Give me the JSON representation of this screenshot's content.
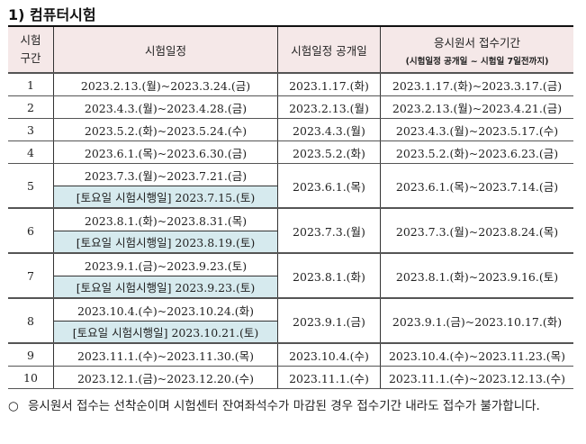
{
  "title": "1) 컴퓨터시험",
  "headers": {
    "period": "시험\n구간",
    "schedule": "시험일정",
    "announce": "시험일정 공개일",
    "apply": "응시원서 접수기간",
    "apply_sub": "(시험일정 공개일 ~ 시험일 7일전까지)"
  },
  "rows": [
    {
      "no": "1",
      "schedule": "2023.2.13.(월)~2023.3.24.(금)",
      "announce": "2023.1.17.(화)",
      "apply": "2023.1.17.(화)~2023.3.17.(금)"
    },
    {
      "no": "2",
      "schedule": "2023.4.3.(월)~2023.4.28.(금)",
      "announce": "2023.2.13.(월)",
      "apply": "2023.2.13.(월)~2023.4.21.(금)"
    },
    {
      "no": "3",
      "schedule": "2023.5.2.(화)~2023.5.24.(수)",
      "announce": "2023.4.3.(월)",
      "apply": "2023.4.3.(월)~2023.5.17.(수)"
    },
    {
      "no": "4",
      "schedule": "2023.6.1.(목)~2023.6.30.(금)",
      "announce": "2023.5.2.(화)",
      "apply": "2023.5.2.(화)~2023.6.23.(금)"
    },
    {
      "no": "5",
      "schedule": "2023.7.3.(월)~2023.7.21.(금)",
      "saturday": "[토요일 시험시행일] 2023.7.15.(토)",
      "announce": "2023.6.1.(목)",
      "apply": "2023.6.1.(목)~2023.7.14.(금)"
    },
    {
      "no": "6",
      "schedule": "2023.8.1.(화)~2023.8.31.(목)",
      "saturday": "[토요일 시험시행일] 2023.8.19.(토)",
      "announce": "2023.7.3.(월)",
      "apply": "2023.7.3.(월)~2023.8.24.(목)"
    },
    {
      "no": "7",
      "schedule": "2023.9.1.(금)~2023.9.23.(토)",
      "saturday": "[토요일 시험시행일] 2023.9.23.(토)",
      "announce": "2023.8.1.(화)",
      "apply": "2023.8.1.(화)~2023.9.16.(토)"
    },
    {
      "no": "8",
      "schedule": "2023.10.4.(수)~2023.10.24.(화)",
      "saturday": "[토요일 시험시행일] 2023.10.21.(토)",
      "announce": "2023.9.1.(금)",
      "apply": "2023.9.1.(금)~2023.10.17.(화)"
    },
    {
      "no": "9",
      "schedule": "2023.11.1.(수)~2023.11.30.(목)",
      "announce": "2023.10.4.(수)",
      "apply": "2023.10.4.(수)~2023.11.23.(목)"
    },
    {
      "no": "10",
      "schedule": "2023.12.1.(금)~2023.12.20.(수)",
      "announce": "2023.11.1.(수)",
      "apply": "2023.11.1.(수)~2023.12.13.(수)"
    }
  ],
  "note": {
    "bullet": "○",
    "text": "응시원서 접수는 선착순이며 시험센터 잔여좌석수가 마감된 경우 접수기간 내라도 접수가 불가합니다."
  },
  "colors": {
    "header_bg": "#f5e8e8",
    "saturday_bg": "#d6eaee"
  }
}
